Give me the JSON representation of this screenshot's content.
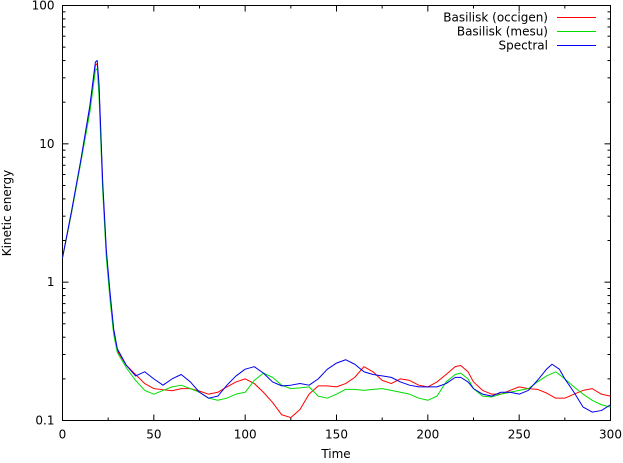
{
  "chart_data": {
    "type": "line",
    "title": "",
    "xlabel": "Time",
    "ylabel": "Kinetic energy",
    "xlim": [
      0,
      300
    ],
    "ylim": [
      0.1,
      100
    ],
    "yscale": "log",
    "grid": false,
    "legend_position": "top-right",
    "x_ticks": [
      "0",
      "50",
      "100",
      "150",
      "200",
      "250",
      "300"
    ],
    "y_ticks": [
      "0.1",
      "1",
      "10",
      "100"
    ],
    "series": [
      {
        "name": "Basilisk (occigen)",
        "color": "#ff0000",
        "points": [
          [
            0,
            1.5
          ],
          [
            5,
            3.2
          ],
          [
            10,
            7.5
          ],
          [
            15,
            18
          ],
          [
            18,
            37
          ],
          [
            19,
            38
          ],
          [
            20,
            25
          ],
          [
            22,
            5.0
          ],
          [
            24,
            1.6
          ],
          [
            26,
            0.8
          ],
          [
            28,
            0.45
          ],
          [
            30,
            0.32
          ],
          [
            35,
            0.25
          ],
          [
            40,
            0.215
          ],
          [
            45,
            0.185
          ],
          [
            50,
            0.17
          ],
          [
            55,
            0.167
          ],
          [
            60,
            0.164
          ],
          [
            65,
            0.17
          ],
          [
            70,
            0.17
          ],
          [
            75,
            0.163
          ],
          [
            80,
            0.155
          ],
          [
            85,
            0.16
          ],
          [
            90,
            0.175
          ],
          [
            95,
            0.19
          ],
          [
            100,
            0.2
          ],
          [
            105,
            0.185
          ],
          [
            110,
            0.16
          ],
          [
            115,
            0.135
          ],
          [
            120,
            0.11
          ],
          [
            125,
            0.105
          ],
          [
            130,
            0.12
          ],
          [
            135,
            0.155
          ],
          [
            140,
            0.178
          ],
          [
            145,
            0.178
          ],
          [
            150,
            0.175
          ],
          [
            155,
            0.185
          ],
          [
            160,
            0.205
          ],
          [
            165,
            0.245
          ],
          [
            170,
            0.225
          ],
          [
            175,
            0.195
          ],
          [
            180,
            0.185
          ],
          [
            185,
            0.2
          ],
          [
            190,
            0.195
          ],
          [
            195,
            0.18
          ],
          [
            200,
            0.175
          ],
          [
            205,
            0.19
          ],
          [
            210,
            0.215
          ],
          [
            215,
            0.245
          ],
          [
            218,
            0.25
          ],
          [
            222,
            0.225
          ],
          [
            225,
            0.19
          ],
          [
            230,
            0.165
          ],
          [
            235,
            0.155
          ],
          [
            240,
            0.155
          ],
          [
            245,
            0.165
          ],
          [
            250,
            0.175
          ],
          [
            255,
            0.17
          ],
          [
            260,
            0.168
          ],
          [
            265,
            0.158
          ],
          [
            270,
            0.145
          ],
          [
            275,
            0.145
          ],
          [
            280,
            0.155
          ],
          [
            285,
            0.165
          ],
          [
            290,
            0.17
          ],
          [
            295,
            0.155
          ],
          [
            300,
            0.15
          ]
        ]
      },
      {
        "name": "Basilisk (mesu)",
        "color": "#00dd00",
        "points": [
          [
            0,
            1.5
          ],
          [
            5,
            3.2
          ],
          [
            10,
            7.3
          ],
          [
            15,
            17
          ],
          [
            18,
            34
          ],
          [
            19,
            35
          ],
          [
            20,
            22
          ],
          [
            22,
            4.6
          ],
          [
            24,
            1.5
          ],
          [
            26,
            0.75
          ],
          [
            28,
            0.42
          ],
          [
            30,
            0.31
          ],
          [
            35,
            0.24
          ],
          [
            40,
            0.195
          ],
          [
            45,
            0.165
          ],
          [
            50,
            0.155
          ],
          [
            55,
            0.165
          ],
          [
            60,
            0.175
          ],
          [
            65,
            0.18
          ],
          [
            70,
            0.17
          ],
          [
            75,
            0.16
          ],
          [
            80,
            0.145
          ],
          [
            85,
            0.14
          ],
          [
            90,
            0.145
          ],
          [
            95,
            0.155
          ],
          [
            100,
            0.16
          ],
          [
            105,
            0.195
          ],
          [
            110,
            0.22
          ],
          [
            115,
            0.205
          ],
          [
            120,
            0.18
          ],
          [
            125,
            0.17
          ],
          [
            130,
            0.172
          ],
          [
            135,
            0.175
          ],
          [
            140,
            0.15
          ],
          [
            145,
            0.145
          ],
          [
            150,
            0.155
          ],
          [
            155,
            0.168
          ],
          [
            160,
            0.168
          ],
          [
            165,
            0.165
          ],
          [
            170,
            0.168
          ],
          [
            175,
            0.17
          ],
          [
            180,
            0.165
          ],
          [
            185,
            0.16
          ],
          [
            190,
            0.155
          ],
          [
            195,
            0.145
          ],
          [
            200,
            0.14
          ],
          [
            205,
            0.15
          ],
          [
            210,
            0.19
          ],
          [
            215,
            0.215
          ],
          [
            218,
            0.22
          ],
          [
            222,
            0.2
          ],
          [
            225,
            0.17
          ],
          [
            230,
            0.15
          ],
          [
            235,
            0.148
          ],
          [
            240,
            0.155
          ],
          [
            245,
            0.16
          ],
          [
            250,
            0.165
          ],
          [
            255,
            0.17
          ],
          [
            260,
            0.19
          ],
          [
            265,
            0.21
          ],
          [
            270,
            0.225
          ],
          [
            275,
            0.2
          ],
          [
            280,
            0.175
          ],
          [
            285,
            0.155
          ],
          [
            290,
            0.14
          ],
          [
            295,
            0.13
          ],
          [
            300,
            0.125
          ]
        ]
      },
      {
        "name": "Spectral",
        "color": "#0000ee",
        "points": [
          [
            0,
            1.5
          ],
          [
            5,
            3.3
          ],
          [
            10,
            7.6
          ],
          [
            15,
            19
          ],
          [
            18,
            39
          ],
          [
            19,
            40
          ],
          [
            20,
            27
          ],
          [
            22,
            5.3
          ],
          [
            24,
            1.7
          ],
          [
            26,
            0.85
          ],
          [
            28,
            0.46
          ],
          [
            30,
            0.33
          ],
          [
            35,
            0.25
          ],
          [
            40,
            0.21
          ],
          [
            45,
            0.225
          ],
          [
            50,
            0.2
          ],
          [
            55,
            0.18
          ],
          [
            60,
            0.2
          ],
          [
            65,
            0.215
          ],
          [
            70,
            0.19
          ],
          [
            75,
            0.16
          ],
          [
            80,
            0.145
          ],
          [
            85,
            0.15
          ],
          [
            90,
            0.18
          ],
          [
            95,
            0.21
          ],
          [
            100,
            0.235
          ],
          [
            105,
            0.245
          ],
          [
            110,
            0.22
          ],
          [
            115,
            0.19
          ],
          [
            120,
            0.178
          ],
          [
            125,
            0.18
          ],
          [
            130,
            0.185
          ],
          [
            135,
            0.18
          ],
          [
            140,
            0.2
          ],
          [
            145,
            0.235
          ],
          [
            150,
            0.26
          ],
          [
            155,
            0.275
          ],
          [
            160,
            0.255
          ],
          [
            165,
            0.225
          ],
          [
            170,
            0.215
          ],
          [
            175,
            0.21
          ],
          [
            180,
            0.205
          ],
          [
            185,
            0.19
          ],
          [
            190,
            0.18
          ],
          [
            195,
            0.175
          ],
          [
            200,
            0.175
          ],
          [
            205,
            0.175
          ],
          [
            210,
            0.185
          ],
          [
            215,
            0.205
          ],
          [
            218,
            0.205
          ],
          [
            222,
            0.19
          ],
          [
            225,
            0.17
          ],
          [
            230,
            0.155
          ],
          [
            235,
            0.15
          ],
          [
            240,
            0.16
          ],
          [
            245,
            0.16
          ],
          [
            250,
            0.155
          ],
          [
            255,
            0.165
          ],
          [
            260,
            0.195
          ],
          [
            265,
            0.235
          ],
          [
            268,
            0.255
          ],
          [
            272,
            0.235
          ],
          [
            275,
            0.2
          ],
          [
            280,
            0.16
          ],
          [
            285,
            0.125
          ],
          [
            290,
            0.115
          ],
          [
            295,
            0.118
          ],
          [
            300,
            0.13
          ]
        ]
      }
    ]
  }
}
